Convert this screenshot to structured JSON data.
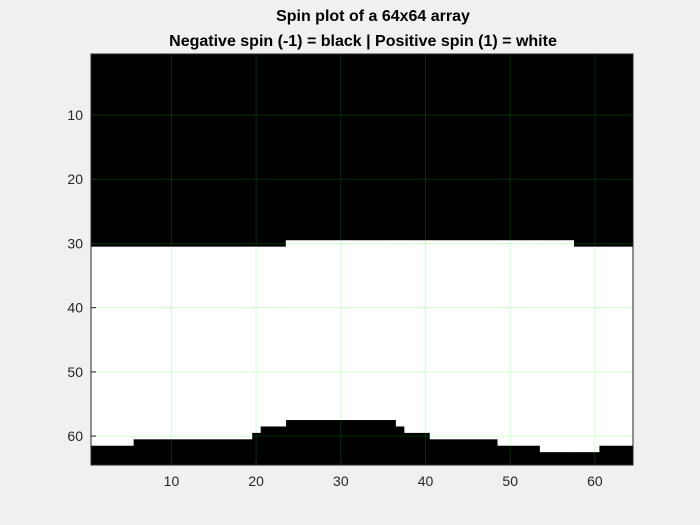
{
  "chart_data": {
    "type": "heatmap",
    "title": "Spin plot of a 64x64 array",
    "subtitle": "Negative spin (-1) = black | Positive spin (1) = white",
    "xlabel": "",
    "ylabel": "",
    "grid": true,
    "xlim": [
      0.5,
      64.5
    ],
    "ylim": [
      0.5,
      64.5
    ],
    "y_direction": "reverse",
    "x_ticks": [
      10,
      20,
      30,
      40,
      50,
      60
    ],
    "y_ticks": [
      10,
      20,
      30,
      40,
      50,
      60
    ],
    "x_tick_labels": [
      "10",
      "20",
      "30",
      "40",
      "50",
      "60"
    ],
    "y_tick_labels": [
      "10",
      "20",
      "30",
      "40",
      "50",
      "60"
    ],
    "array_size": [
      64,
      64
    ],
    "values": [
      -1,
      1
    ],
    "colormap": {
      "-1": "#000000",
      "1": "#ffffff"
    },
    "white_region_description": "columns: [start_col, end_col, first_white_row, last_white_row]",
    "white_region_columns": [
      [
        1,
        5,
        31,
        61
      ],
      [
        6,
        19,
        31,
        60
      ],
      [
        20,
        20,
        31,
        59
      ],
      [
        21,
        23,
        31,
        58
      ],
      [
        24,
        36,
        30,
        57
      ],
      [
        37,
        37,
        30,
        58
      ],
      [
        38,
        40,
        30,
        59
      ],
      [
        41,
        48,
        30,
        60
      ],
      [
        49,
        53,
        30,
        61
      ],
      [
        54,
        57,
        30,
        62
      ],
      [
        58,
        60,
        31,
        62
      ],
      [
        61,
        64,
        31,
        61
      ]
    ]
  },
  "colors": {
    "figure_background": "#f0f0f0",
    "grid": "#00ff00"
  }
}
